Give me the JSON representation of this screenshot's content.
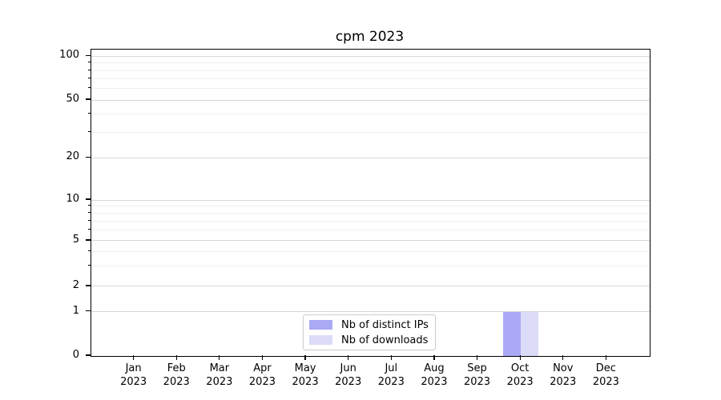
{
  "chart": {
    "title": "cpm 2023"
  },
  "chart_data": {
    "type": "bar",
    "title": "cpm 2023",
    "categories": [
      "Jan",
      "Feb",
      "Mar",
      "Apr",
      "May",
      "Jun",
      "Jul",
      "Aug",
      "Sep",
      "Oct",
      "Nov",
      "Dec"
    ],
    "category_year": "2023",
    "series": [
      {
        "name": "Nb of distinct IPs",
        "color": "#a9a9f5",
        "values": [
          0,
          0,
          0,
          0,
          0,
          0,
          0,
          0,
          0,
          1,
          0,
          0
        ]
      },
      {
        "name": "Nb of downloads",
        "color": "#dcdcf8",
        "values": [
          0,
          0,
          0,
          0,
          0,
          0,
          0,
          0,
          0,
          1,
          0,
          0
        ]
      }
    ],
    "yticks": [
      0,
      1,
      2,
      5,
      10,
      20,
      50,
      100
    ],
    "yticks_minor": [
      3,
      4,
      6,
      7,
      8,
      9,
      30,
      40,
      60,
      70,
      80,
      90
    ],
    "ylim": [
      0,
      112
    ],
    "yscale": "symlog",
    "grid": "both",
    "legend_position": "lower center"
  }
}
